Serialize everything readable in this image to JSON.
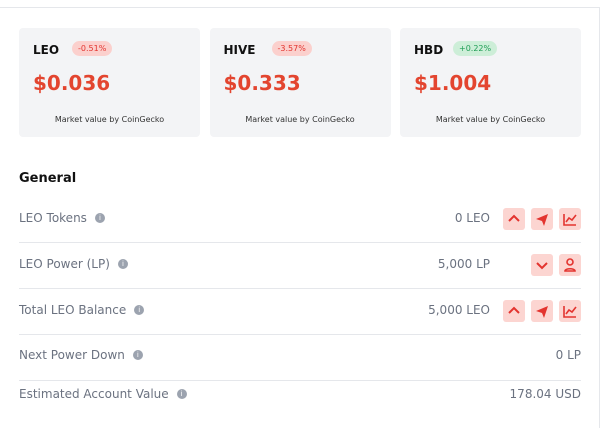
{
  "cards": [
    {
      "symbol": "LEO",
      "change": "-0.51%",
      "price": "$0.036",
      "source": "Market value by CoinGecko",
      "trend": "down"
    },
    {
      "symbol": "HIVE",
      "change": "-3.57%",
      "price": "$0.333",
      "source": "Market value by CoinGecko",
      "trend": "down"
    },
    {
      "symbol": "HBD",
      "change": "+0.22%",
      "price": "$1.004",
      "source": "Market value by CoinGecko",
      "trend": "up"
    }
  ],
  "section": {
    "title": "General",
    "rows": [
      {
        "label": "LEO Tokens",
        "value": "0 LEO",
        "actions": [
          "up",
          "send",
          "chart"
        ]
      },
      {
        "label": "LEO Power (LP)",
        "value": "5,000 LP",
        "actions": [
          "down",
          "user"
        ]
      },
      {
        "label": "Total LEO Balance",
        "value": "5,000 LEO",
        "actions": [
          "up",
          "send",
          "chart"
        ]
      },
      {
        "label": "Next Power Down",
        "value": "0 LP",
        "actions": []
      },
      {
        "label": "Estimated Account Value",
        "value": "178.04 USD",
        "actions": []
      }
    ]
  }
}
